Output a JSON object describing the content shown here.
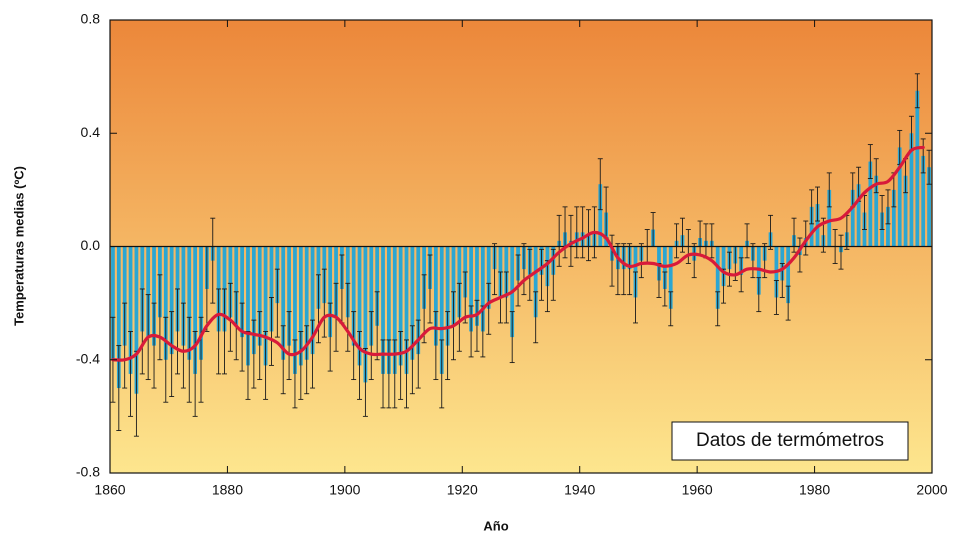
{
  "chart_data": {
    "type": "bar",
    "x_label": "Año",
    "y_label": "Temperaturas medias (ºC)",
    "annotation": "Datos de termómetros",
    "color": "#2ba6d2",
    "error_color": "#1a1a1a",
    "x": [
      1861,
      1862,
      1863,
      1864,
      1865,
      1866,
      1867,
      1868,
      1869,
      1870,
      1871,
      1872,
      1873,
      1874,
      1875,
      1876,
      1877,
      1878,
      1879,
      1880,
      1881,
      1882,
      1883,
      1884,
      1885,
      1886,
      1887,
      1888,
      1889,
      1890,
      1891,
      1892,
      1893,
      1894,
      1895,
      1896,
      1897,
      1898,
      1899,
      1900,
      1901,
      1902,
      1903,
      1904,
      1905,
      1906,
      1907,
      1908,
      1909,
      1910,
      1911,
      1912,
      1913,
      1914,
      1915,
      1916,
      1917,
      1918,
      1919,
      1920,
      1921,
      1922,
      1923,
      1924,
      1925,
      1926,
      1927,
      1928,
      1929,
      1930,
      1931,
      1932,
      1933,
      1934,
      1935,
      1936,
      1937,
      1938,
      1939,
      1940,
      1941,
      1942,
      1943,
      1944,
      1945,
      1946,
      1947,
      1948,
      1949,
      1950,
      1951,
      1952,
      1953,
      1954,
      1955,
      1956,
      1957,
      1958,
      1959,
      1960,
      1961,
      1962,
      1963,
      1964,
      1965,
      1966,
      1967,
      1968,
      1969,
      1970,
      1971,
      1972,
      1973,
      1974,
      1975,
      1976,
      1977,
      1978,
      1979,
      1980,
      1981,
      1982,
      1983,
      1984,
      1985,
      1986,
      1987,
      1988,
      1989,
      1990,
      1991,
      1992,
      1993,
      1994,
      1995,
      1996,
      1997,
      1998,
      1999,
      2000
    ],
    "values": [
      -0.4,
      -0.5,
      -0.35,
      -0.45,
      -0.52,
      -0.3,
      -0.32,
      -0.35,
      -0.25,
      -0.4,
      -0.38,
      -0.3,
      -0.35,
      -0.4,
      -0.45,
      -0.4,
      -0.15,
      -0.05,
      -0.3,
      -0.3,
      -0.25,
      -0.28,
      -0.32,
      -0.42,
      -0.38,
      -0.35,
      -0.42,
      -0.3,
      -0.2,
      -0.4,
      -0.35,
      -0.45,
      -0.42,
      -0.4,
      -0.38,
      -0.22,
      -0.2,
      -0.32,
      -0.25,
      -0.15,
      -0.25,
      -0.35,
      -0.42,
      -0.48,
      -0.35,
      -0.28,
      -0.45,
      -0.45,
      -0.45,
      -0.42,
      -0.45,
      -0.4,
      -0.38,
      -0.22,
      -0.15,
      -0.35,
      -0.45,
      -0.35,
      -0.28,
      -0.25,
      -0.18,
      -0.3,
      -0.28,
      -0.3,
      -0.22,
      -0.08,
      -0.18,
      -0.18,
      -0.32,
      -0.12,
      -0.08,
      -0.1,
      -0.25,
      -0.1,
      -0.14,
      -0.1,
      0.02,
      0.05,
      0.02,
      0.05,
      0.05,
      0.04,
      0.05,
      0.22,
      0.12,
      -0.05,
      -0.08,
      -0.08,
      -0.08,
      -0.18,
      -0.05,
      0,
      0.06,
      -0.12,
      -0.15,
      -0.22,
      0.02,
      0.04,
      0,
      -0.05,
      0.03,
      0.02,
      0.02,
      -0.22,
      -0.14,
      -0.08,
      -0.06,
      -0.1,
      0.02,
      -0.05,
      -0.17,
      -0.05,
      0.05,
      -0.18,
      -0.12,
      -0.2,
      0.04,
      -0.03,
      0.03,
      0.14,
      0.15,
      0.04,
      0.2,
      0,
      -0.02,
      0.05,
      0.2,
      0.22,
      0.12,
      0.3,
      0.25,
      0.12,
      0.14,
      0.2,
      0.35,
      0.25,
      0.4,
      0.55,
      0.32,
      0.28
    ],
    "errors": [
      0.15,
      0.15,
      0.15,
      0.15,
      0.15,
      0.15,
      0.15,
      0.15,
      0.15,
      0.15,
      0.15,
      0.15,
      0.15,
      0.15,
      0.15,
      0.15,
      0.15,
      0.15,
      0.15,
      0.15,
      0.12,
      0.12,
      0.12,
      0.12,
      0.12,
      0.12,
      0.12,
      0.12,
      0.12,
      0.12,
      0.12,
      0.12,
      0.12,
      0.12,
      0.12,
      0.12,
      0.12,
      0.12,
      0.12,
      0.12,
      0.12,
      0.12,
      0.12,
      0.12,
      0.12,
      0.12,
      0.12,
      0.12,
      0.12,
      0.12,
      0.12,
      0.12,
      0.12,
      0.12,
      0.12,
      0.12,
      0.12,
      0.12,
      0.12,
      0.12,
      0.09,
      0.09,
      0.09,
      0.09,
      0.09,
      0.09,
      0.09,
      0.09,
      0.09,
      0.09,
      0.09,
      0.09,
      0.09,
      0.09,
      0.09,
      0.09,
      0.09,
      0.09,
      0.09,
      0.09,
      0.09,
      0.09,
      0.09,
      0.09,
      0.09,
      0.09,
      0.09,
      0.09,
      0.09,
      0.09,
      0.06,
      0.06,
      0.06,
      0.06,
      0.06,
      0.06,
      0.06,
      0.06,
      0.06,
      0.06,
      0.06,
      0.06,
      0.06,
      0.06,
      0.06,
      0.06,
      0.06,
      0.06,
      0.06,
      0.06,
      0.06,
      0.06,
      0.06,
      0.06,
      0.06,
      0.06,
      0.06,
      0.06,
      0.06,
      0.06,
      0.06,
      0.06,
      0.06,
      0.06,
      0.06,
      0.06,
      0.06,
      0.06,
      0.06,
      0.06,
      0.06,
      0.06,
      0.06,
      0.06,
      0.06,
      0.06,
      0.06,
      0.06,
      0.06,
      0.06
    ],
    "smoothed": {
      "color": "#d81a3a",
      "x": [
        1861,
        1863,
        1865,
        1867,
        1869,
        1871,
        1873,
        1875,
        1877,
        1879,
        1881,
        1883,
        1885,
        1887,
        1889,
        1891,
        1893,
        1895,
        1897,
        1899,
        1901,
        1903,
        1905,
        1907,
        1909,
        1911,
        1913,
        1915,
        1917,
        1919,
        1921,
        1923,
        1925,
        1927,
        1929,
        1931,
        1933,
        1935,
        1937,
        1939,
        1941,
        1943,
        1945,
        1947,
        1949,
        1951,
        1953,
        1955,
        1957,
        1959,
        1961,
        1963,
        1965,
        1967,
        1969,
        1971,
        1973,
        1975,
        1977,
        1979,
        1981,
        1983,
        1985,
        1987,
        1989,
        1991,
        1993,
        1995,
        1997,
        1999
      ],
      "values": [
        -0.4,
        -0.4,
        -0.38,
        -0.32,
        -0.32,
        -0.35,
        -0.37,
        -0.35,
        -0.28,
        -0.24,
        -0.26,
        -0.3,
        -0.31,
        -0.32,
        -0.34,
        -0.38,
        -0.37,
        -0.32,
        -0.25,
        -0.25,
        -0.3,
        -0.36,
        -0.38,
        -0.38,
        -0.38,
        -0.37,
        -0.33,
        -0.29,
        -0.29,
        -0.28,
        -0.25,
        -0.24,
        -0.2,
        -0.18,
        -0.16,
        -0.12,
        -0.09,
        -0.06,
        -0.02,
        0.01,
        0.03,
        0.05,
        0.03,
        -0.04,
        -0.07,
        -0.06,
        -0.06,
        -0.07,
        -0.06,
        -0.03,
        -0.03,
        -0.05,
        -0.09,
        -0.1,
        -0.08,
        -0.08,
        -0.09,
        -0.08,
        -0.04,
        0.02,
        0.07,
        0.09,
        0.1,
        0.14,
        0.19,
        0.22,
        0.23,
        0.28,
        0.34,
        0.35
      ]
    },
    "xlim": [
      1860,
      2000
    ],
    "xticks": [
      1860,
      1880,
      1900,
      1920,
      1940,
      1960,
      1980,
      2000
    ],
    "ylim": [
      -0.8,
      0.8
    ],
    "yticks": [
      -0.8,
      -0.4,
      {
        "value": 0,
        "label": "0.0"
      },
      0.4,
      0.8
    ],
    "background": [
      "#ec873a",
      "#fde68e"
    ]
  }
}
